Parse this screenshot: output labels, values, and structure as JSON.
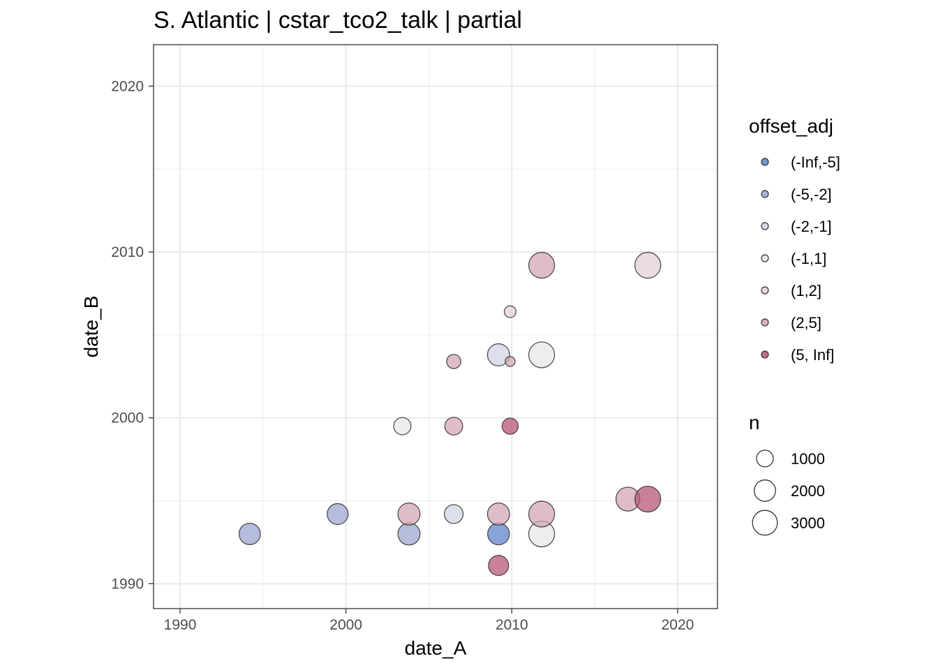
{
  "chart_data": {
    "type": "scatter",
    "title": "S. Atlantic | cstar_tco2_talk | partial",
    "xlabel": "date_A",
    "ylabel": "date_B",
    "xlim": [
      1988.4,
      2022.4
    ],
    "ylim": [
      1988.5,
      2022.5
    ],
    "x_ticks": [
      1990,
      2000,
      2010,
      2020
    ],
    "y_ticks": [
      1990,
      2000,
      2010,
      2020
    ],
    "x_tick_labels": [
      "1990",
      "2000",
      "2010",
      "2020"
    ],
    "y_tick_labels": [
      "1990",
      "2000",
      "2010",
      "2020"
    ],
    "grid": true,
    "legend_position": "right",
    "color_legend": {
      "title": "offset_adj",
      "categories": [
        {
          "label": "(-Inf,-5]",
          "color": "#5a80c8"
        },
        {
          "label": "(-5,-2]",
          "color": "#9aa4cf"
        },
        {
          "label": "(-2,-1]",
          "color": "#cfd3e4"
        },
        {
          "label": "(-1,1]",
          "color": "#e6e6e6"
        },
        {
          "label": "(1,2]",
          "color": "#e2ced3"
        },
        {
          "label": "(2,5]",
          "color": "#d1a3b0"
        },
        {
          "label": "(5, Inf]",
          "color": "#b5506f"
        }
      ]
    },
    "size_legend": {
      "title": "n",
      "values": [
        1000,
        2000,
        3000
      ],
      "labels": [
        "1000",
        "2000",
        "3000"
      ]
    },
    "points": [
      {
        "x": 1994.2,
        "y": 1993.0,
        "n": 2000,
        "offset": "(-5,-2]"
      },
      {
        "x": 1999.5,
        "y": 1994.2,
        "n": 1900,
        "offset": "(-5,-2]"
      },
      {
        "x": 2003.8,
        "y": 1993.0,
        "n": 2200,
        "offset": "(-5,-2]"
      },
      {
        "x": 2003.8,
        "y": 1994.2,
        "n": 2200,
        "offset": "(2,5]"
      },
      {
        "x": 2003.4,
        "y": 1999.5,
        "n": 1100,
        "offset": "(-1,1]"
      },
      {
        "x": 2006.5,
        "y": 1994.2,
        "n": 1400,
        "offset": "(-2,-1]"
      },
      {
        "x": 2006.5,
        "y": 1999.5,
        "n": 1200,
        "offset": "(2,5]"
      },
      {
        "x": 2006.5,
        "y": 2003.4,
        "n": 600,
        "offset": "(2,5]"
      },
      {
        "x": 2009.2,
        "y": 1991.1,
        "n": 1700,
        "offset": "(5, Inf]"
      },
      {
        "x": 2009.2,
        "y": 1993.0,
        "n": 2100,
        "offset": "(-Inf,-5]"
      },
      {
        "x": 2009.2,
        "y": 1994.2,
        "n": 2200,
        "offset": "(2,5]"
      },
      {
        "x": 2009.2,
        "y": 2003.8,
        "n": 2200,
        "offset": "(-2,-1]"
      },
      {
        "x": 2009.9,
        "y": 1999.5,
        "n": 900,
        "offset": "(5, Inf]"
      },
      {
        "x": 2009.9,
        "y": 2003.4,
        "n": 150,
        "offset": "(2,5]"
      },
      {
        "x": 2009.9,
        "y": 2006.4,
        "n": 300,
        "offset": "(1,2]"
      },
      {
        "x": 2011.8,
        "y": 1993.0,
        "n": 3300,
        "offset": "(-1,1]"
      },
      {
        "x": 2011.8,
        "y": 1994.2,
        "n": 3300,
        "offset": "(2,5]"
      },
      {
        "x": 2011.8,
        "y": 2003.8,
        "n": 3300,
        "offset": "(-1,1]"
      },
      {
        "x": 2011.8,
        "y": 2009.2,
        "n": 3300,
        "offset": "(2,5]"
      },
      {
        "x": 2017.0,
        "y": 1995.1,
        "n": 2700,
        "offset": "(2,5]"
      },
      {
        "x": 2018.2,
        "y": 1995.1,
        "n": 3300,
        "offset": "(5, Inf]"
      },
      {
        "x": 2018.2,
        "y": 2009.2,
        "n": 3300,
        "offset": "(1,2]"
      }
    ]
  }
}
